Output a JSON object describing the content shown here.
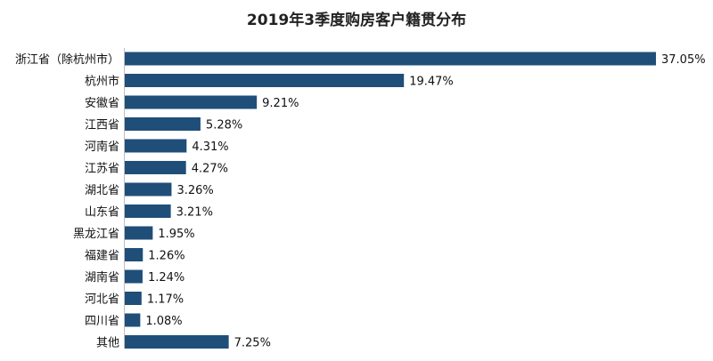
{
  "chart_data": {
    "type": "bar",
    "orientation": "horizontal",
    "title": "2019年3季度购房客户籍贯分布",
    "categories": [
      "浙江省（除杭州市）",
      "杭州市",
      "安徽省",
      "江西省",
      "河南省",
      "江苏省",
      "湖北省",
      "山东省",
      "黑龙江省",
      "福建省",
      "湖南省",
      "河北省",
      "四川省",
      "其他"
    ],
    "values": [
      37.05,
      19.47,
      9.21,
      5.28,
      4.31,
      4.27,
      3.26,
      3.21,
      1.95,
      1.26,
      1.24,
      1.17,
      1.08,
      7.25
    ],
    "value_labels": [
      "37.05%",
      "19.47%",
      "9.21%",
      "5.28%",
      "4.31%",
      "4.27%",
      "3.26%",
      "3.21%",
      "1.95%",
      "1.26%",
      "1.24%",
      "1.17%",
      "1.08%",
      "7.25%"
    ],
    "unit": "%",
    "bar_color": "#1f4e79",
    "xlim": [
      0,
      37.05
    ],
    "grid": false,
    "legend": "none"
  }
}
